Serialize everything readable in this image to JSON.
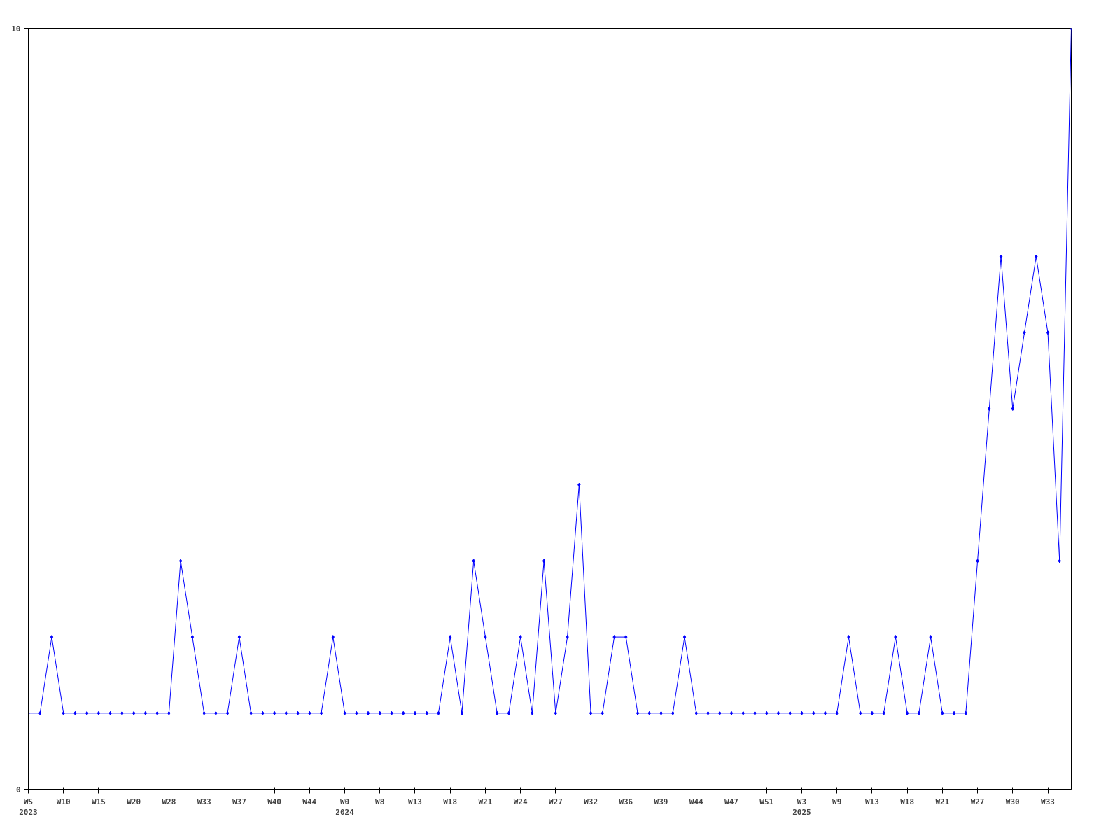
{
  "chart_data": {
    "type": "line",
    "categories": [
      "W5\n2023",
      null,
      null,
      "W10",
      null,
      null,
      "W15",
      null,
      null,
      "W20",
      null,
      null,
      "W28",
      null,
      null,
      "W33",
      null,
      null,
      "W37",
      null,
      null,
      "W40",
      null,
      null,
      "W44",
      null,
      null,
      "W0\n2024",
      null,
      null,
      "W8",
      null,
      null,
      "W13",
      null,
      null,
      "W18",
      null,
      null,
      "W21",
      null,
      null,
      "W24",
      null,
      null,
      "W27",
      null,
      null,
      "W32",
      null,
      null,
      "W36",
      null,
      null,
      "W39",
      null,
      null,
      "W44",
      null,
      null,
      "W47",
      null,
      null,
      "W51",
      null,
      null,
      "W3\n2025",
      null,
      null,
      "W9",
      null,
      null,
      "W13",
      null,
      null,
      "W18",
      null,
      null,
      "W21",
      null,
      null,
      "W27",
      null,
      null,
      "W30",
      null,
      null,
      "W33",
      null,
      null
    ],
    "series": [
      {
        "color": "#0000ff",
        "values": [
          1,
          1,
          2,
          1,
          1,
          1,
          1,
          1,
          1,
          1,
          1,
          1,
          1,
          3,
          2,
          1,
          1,
          1,
          2,
          1,
          1,
          1,
          1,
          1,
          1,
          1,
          2,
          1,
          1,
          1,
          1,
          1,
          1,
          1,
          1,
          1,
          2,
          1,
          3,
          2,
          1,
          1,
          2,
          1,
          3,
          1,
          2,
          4,
          1,
          1,
          2,
          2,
          1,
          1,
          1,
          1,
          2,
          1,
          1,
          1,
          1,
          1,
          1,
          1,
          1,
          1,
          1,
          1,
          1,
          1,
          2,
          1,
          1,
          1,
          2,
          1,
          1,
          2,
          1,
          1,
          1,
          3,
          5,
          7,
          5,
          6,
          7,
          6,
          3,
          10
        ]
      }
    ],
    "ylim": [
      0,
      10
    ],
    "yticks": [
      0,
      10
    ],
    "grid": false,
    "marker": "diamond",
    "line_style": "solid"
  }
}
